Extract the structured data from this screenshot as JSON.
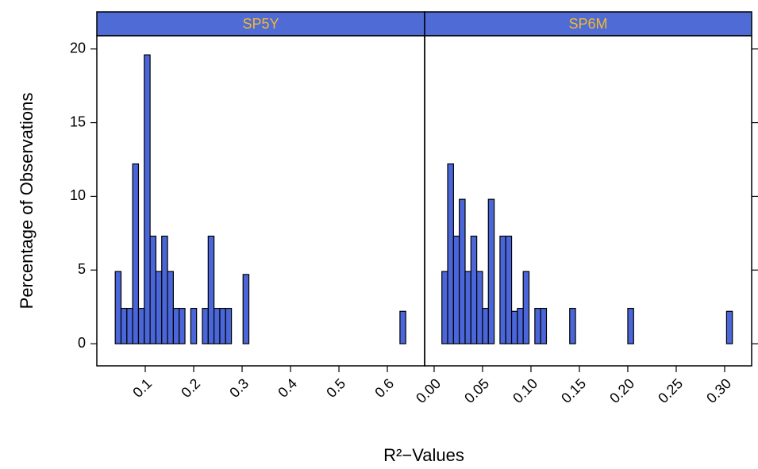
{
  "chart_data": [
    {
      "type": "histogram",
      "title": "SP5Y",
      "ylabel": "Percentage of Observations",
      "xlabel": "R²−Values",
      "color": "#4a66d9",
      "strip_color": "#4f6bd6",
      "title_color": "#f5b82a",
      "bins": [
        0.038,
        0.05,
        0.062,
        0.074,
        0.086,
        0.098,
        0.11,
        0.122,
        0.134,
        0.146,
        0.158,
        0.17,
        0.182,
        0.194,
        0.206,
        0.218,
        0.23,
        0.242,
        0.254,
        0.266,
        0.278,
        0.29,
        0.302,
        0.314,
        0.326,
        0.338,
        0.35,
        0.362,
        0.374,
        0.386,
        0.398,
        0.41,
        0.422,
        0.434,
        0.446,
        0.458,
        0.47,
        0.482,
        0.494,
        0.506,
        0.518,
        0.53,
        0.542,
        0.554,
        0.566,
        0.578,
        0.59,
        0.602,
        0.614,
        0.626,
        0.638
      ],
      "values": [
        4.9,
        2.4,
        2.4,
        12.2,
        2.4,
        19.6,
        7.3,
        4.9,
        7.3,
        4.9,
        2.4,
        2.4,
        0,
        2.4,
        0,
        2.4,
        7.3,
        2.4,
        2.4,
        2.4,
        0,
        0,
        4.7,
        0,
        0,
        0,
        0,
        0,
        0,
        0,
        0,
        0,
        0,
        0,
        0,
        0,
        0,
        0,
        0,
        0,
        0,
        0,
        0,
        0,
        0,
        0,
        0,
        0,
        0,
        2.2
      ],
      "xlim": [
        0,
        0.677
      ],
      "xticks": [
        0.1,
        0.2,
        0.3,
        0.4,
        0.5,
        0.6
      ],
      "ylim": [
        -1.5,
        20.9
      ],
      "yticks": [
        0,
        5,
        10,
        15,
        20
      ]
    },
    {
      "type": "histogram",
      "title": "SP6M",
      "color": "#4a66d9",
      "strip_color": "#4f6bd6",
      "title_color": "#f5b82a",
      "bins": [
        0.008,
        0.014,
        0.02,
        0.026,
        0.032,
        0.038,
        0.044,
        0.05,
        0.056,
        0.062,
        0.068,
        0.074,
        0.08,
        0.086,
        0.092,
        0.098,
        0.104,
        0.11,
        0.116,
        0.122,
        0.128,
        0.134,
        0.14,
        0.146,
        0.152,
        0.158,
        0.164,
        0.17,
        0.176,
        0.182,
        0.188,
        0.194,
        0.2,
        0.206,
        0.212,
        0.218,
        0.224,
        0.23,
        0.236,
        0.242,
        0.248,
        0.254,
        0.26,
        0.266,
        0.272,
        0.278,
        0.284,
        0.29,
        0.296,
        0.302,
        0.308
      ],
      "values": [
        4.9,
        12.2,
        7.3,
        9.8,
        4.9,
        7.3,
        4.9,
        2.4,
        9.8,
        0,
        7.3,
        7.3,
        2.2,
        2.4,
        4.9,
        0,
        2.4,
        2.4,
        0,
        0,
        0,
        0,
        2.4,
        0,
        0,
        0,
        0,
        0,
        0,
        0,
        0,
        0,
        2.4,
        0,
        0,
        0,
        0,
        0,
        0,
        0,
        0,
        0,
        0,
        0,
        0,
        0,
        0,
        0,
        0,
        2.2
      ],
      "xlim": [
        -0.0098,
        0.3279
      ],
      "xticks": [
        {
          "value": 0,
          "label": "0.00"
        },
        {
          "value": 0.05,
          "label": "0.05"
        },
        {
          "value": 0.1,
          "label": "0.10"
        },
        {
          "value": 0.15,
          "label": "0.15"
        },
        {
          "value": 0.2,
          "label": "0.20"
        },
        {
          "value": 0.25,
          "label": "0.25"
        },
        {
          "value": 0.3,
          "label": "0.30"
        }
      ],
      "ylim": [
        -1.5,
        20.9
      ],
      "yticks": [
        0,
        5,
        10,
        15,
        20
      ]
    }
  ]
}
